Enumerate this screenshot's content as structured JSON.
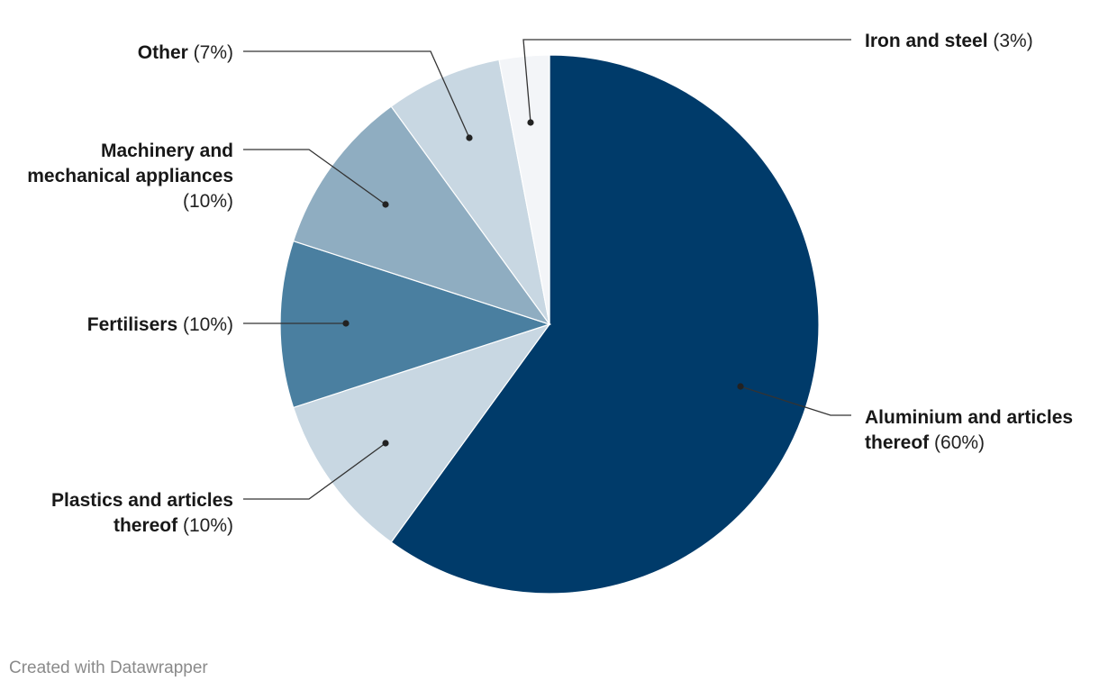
{
  "chart_data": {
    "type": "pie",
    "slices": [
      {
        "label": "Aluminium and articles thereof",
        "value": 60,
        "pct_text": "(60%)",
        "color": "#003b6a"
      },
      {
        "label": "Plastics and articles thereof",
        "value": 10,
        "pct_text": "(10%)",
        "color": "#c8d7e2"
      },
      {
        "label": "Fertilisers",
        "value": 10,
        "pct_text": "(10%)",
        "color": "#4a7fa0"
      },
      {
        "label": "Machinery and mechanical appliances",
        "value": 10,
        "pct_text": "(10%)",
        "color": "#8fadc1"
      },
      {
        "label": "Other",
        "value": 7,
        "pct_text": "(7%)",
        "color": "#c8d7e2"
      },
      {
        "label": "Iron and steel",
        "value": 3,
        "pct_text": "(3%)",
        "color": "#f3f5f8"
      }
    ]
  },
  "footer": {
    "credit": "Created with Datawrapper"
  }
}
